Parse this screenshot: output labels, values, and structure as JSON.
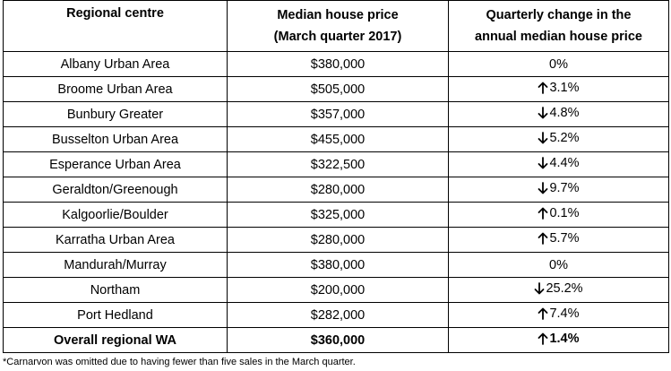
{
  "table": {
    "headers": {
      "col1": "Regional centre",
      "col2_line1": "Median house price",
      "col2_line2": "(March quarter 2017)",
      "col3_line1": "Quarterly change in the",
      "col3_line2": "annual median house price"
    },
    "rows": [
      {
        "centre": "Albany Urban Area",
        "price": "$380,000",
        "direction": "none",
        "change": "0%"
      },
      {
        "centre": "Broome Urban Area",
        "price": "$505,000",
        "direction": "up",
        "change": "3.1%"
      },
      {
        "centre": "Bunbury Greater",
        "price": "$357,000",
        "direction": "down",
        "change": "4.8%"
      },
      {
        "centre": "Busselton Urban Area",
        "price": "$455,000",
        "direction": "down",
        "change": "5.2%"
      },
      {
        "centre": "Esperance Urban Area",
        "price": "$322,500",
        "direction": "down",
        "change": "4.4%"
      },
      {
        "centre": "Geraldton/Greenough",
        "price": "$280,000",
        "direction": "down",
        "change": "9.7%"
      },
      {
        "centre": "Kalgoorlie/Boulder",
        "price": "$325,000",
        "direction": "up",
        "change": "0.1%"
      },
      {
        "centre": "Karratha Urban Area",
        "price": "$280,000",
        "direction": "up",
        "change": "5.7%"
      },
      {
        "centre": "Mandurah/Murray",
        "price": "$380,000",
        "direction": "none",
        "change": "0%"
      },
      {
        "centre": "Northam",
        "price": "$200,000",
        "direction": "down",
        "change": "25.2%"
      },
      {
        "centre": "Port Hedland",
        "price": "$282,000",
        "direction": "up",
        "change": "7.4%"
      }
    ],
    "overall": {
      "centre": "Overall regional WA",
      "price": "$360,000",
      "direction": "up",
      "change": "1.4%"
    }
  },
  "footnote": "*Carnarvon was omitted due to having fewer than five sales in the March quarter.",
  "icons": {
    "up": "arrow-up-icon",
    "down": "arrow-down-icon"
  }
}
